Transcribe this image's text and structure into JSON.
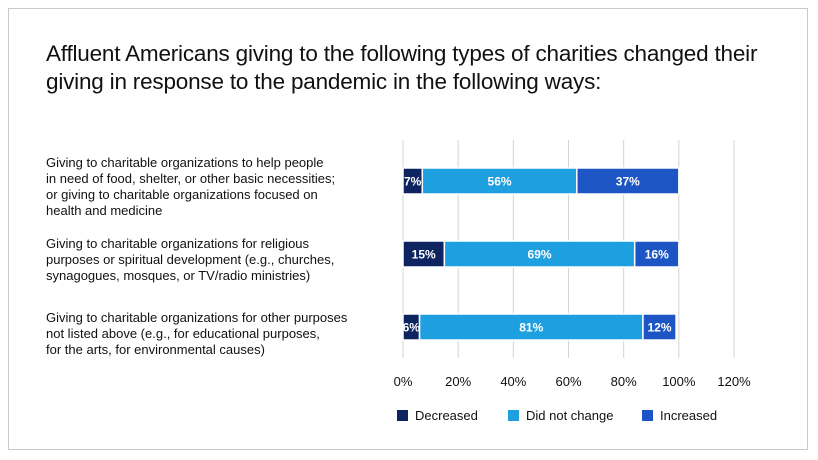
{
  "title": "Affluent Americans giving to the following types of charities changed their giving in response to the pandemic in the following ways:",
  "colors": {
    "decreased": "#0d2461",
    "did_not_change": "#1ea0e0",
    "increased": "#1d55c4",
    "grid": "#d4d4d4"
  },
  "chart_data": {
    "type": "bar",
    "orientation": "horizontal",
    "stacked": true,
    "title": "Affluent Americans giving to the following types of charities changed their giving in response to the pandemic in the following ways:",
    "categories": [
      "Giving to charitable organizations to help people in need of food, shelter, or other basic necessities; or giving to charitable organizations focused on health and medicine",
      "Giving to charitable organizations for religious purposes or spiritual development (e.g., churches, synagogues, mosques, or TV/radio ministries)",
      "Giving to charitable organizations for other purposes not listed above (e.g., for educational purposes, for the arts, for environmental causes)"
    ],
    "category_lines": [
      [
        "Giving to charitable organizations to help people",
        "in need of food, shelter, or other basic necessities;",
        "or giving to charitable organizations focused on",
        "health and medicine"
      ],
      [
        "Giving to charitable organizations for religious",
        "purposes or spiritual development (e.g., churches,",
        "synagogues, mosques, or TV/radio ministries)"
      ],
      [
        "Giving to charitable organizations for other purposes",
        "not listed above (e.g., for educational purposes,",
        "for the arts, for environmental causes)"
      ]
    ],
    "series": [
      {
        "name": "Decreased",
        "values": [
          7,
          15,
          6
        ],
        "labels": [
          "7%",
          "15%",
          "6%"
        ]
      },
      {
        "name": "Did not change",
        "values": [
          56,
          69,
          81
        ],
        "labels": [
          "56%",
          "69%",
          "81%"
        ]
      },
      {
        "name": "Increased",
        "values": [
          37,
          16,
          12
        ],
        "labels": [
          "37%",
          "16%",
          "12%"
        ]
      }
    ],
    "xlim": [
      0,
      120
    ],
    "xticks": [
      0,
      20,
      40,
      60,
      80,
      100,
      120
    ],
    "xtick_labels": [
      "0%",
      "20%",
      "40%",
      "60%",
      "80%",
      "100%",
      "120%"
    ],
    "grid": true,
    "legend_position": "bottom"
  }
}
